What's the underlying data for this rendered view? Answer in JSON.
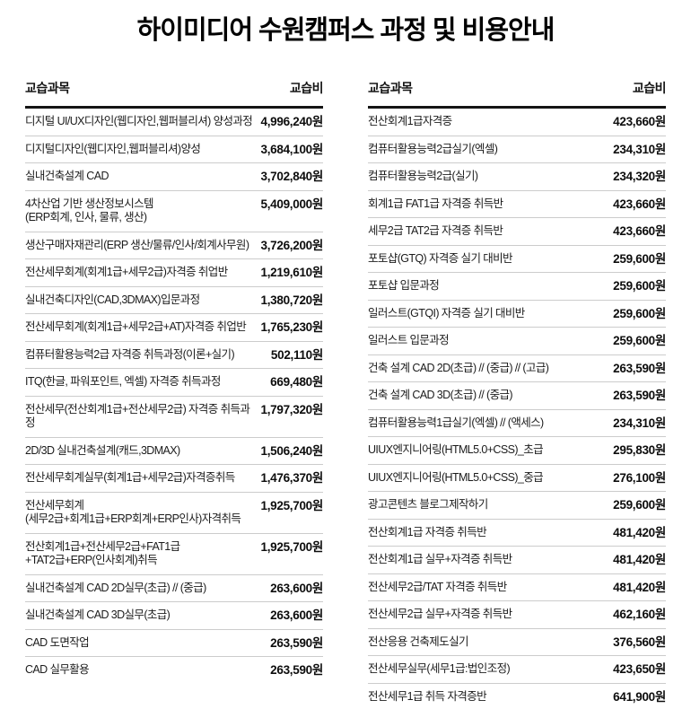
{
  "title": "하이미디어 수원캠퍼스 과정 및 비용안내",
  "headers": {
    "subject": "교습과목",
    "fee": "교습비"
  },
  "left_table": {
    "rows": [
      {
        "subject": "디지털 UI/UX디자인(웹디자인,웹퍼블리셔) 양성과정",
        "fee": "4,996,240원"
      },
      {
        "subject": "디지털디자인(웹디자인,웹퍼블리셔)양성",
        "fee": "3,684,100원"
      },
      {
        "subject": "실내건축설계 CAD",
        "fee": "3,702,840원"
      },
      {
        "subject": "4차산업 기반 생산정보시스템\n(ERP회계, 인사, 물류, 생산)",
        "fee": "5,409,000원"
      },
      {
        "subject": "생산구매자재관리(ERP 생산/물류/인사/회계사무원)",
        "fee": "3,726,200원"
      },
      {
        "subject": "전산세무회계(회계1급+세무2급)자격증 취업반",
        "fee": "1,219,610원"
      },
      {
        "subject": "실내건축디자인(CAD,3DMAX)입문과정",
        "fee": "1,380,720원"
      },
      {
        "subject": "전산세무회계(회계1급+세무2급+AT)자격증 취업반",
        "fee": "1,765,230원"
      },
      {
        "subject": "컴퓨터활용능력2급 자격증 취득과정(이론+실기)",
        "fee": "502,110원"
      },
      {
        "subject": "ITQ(한글, 파워포인트, 엑셀) 자격증 취득과정",
        "fee": "669,480원"
      },
      {
        "subject": "전산세무(전산회계1급+전산세무2급) 자격증 취득과정",
        "fee": "1,797,320원"
      },
      {
        "subject": "2D/3D 실내건축설계(캐드,3DMAX)",
        "fee": "1,506,240원"
      },
      {
        "subject": "전산세무회계실무(회계1급+세무2급)자격증취득",
        "fee": "1,476,370원"
      },
      {
        "subject": "전산세무회계\n(세무2급+회계1급+ERP회계+ERP인사)자격취득",
        "fee": "1,925,700원"
      },
      {
        "subject": "전산회계1급+전산세무2급+FAT1급\n+TAT2급+ERP(인사회계)취득",
        "fee": "1,925,700원"
      },
      {
        "subject": "실내건축설계 CAD 2D실무(초급) // (중급)",
        "fee": "263,600원"
      },
      {
        "subject": "실내건축설계 CAD 3D실무(초급)",
        "fee": "263,600원"
      },
      {
        "subject": "CAD 도면작업",
        "fee": "263,590원"
      },
      {
        "subject": "CAD 실무활용",
        "fee": "263,590원"
      }
    ]
  },
  "right_table": {
    "rows": [
      {
        "subject": "전산회계1급자격증",
        "fee": "423,660원"
      },
      {
        "subject": "컴퓨터활용능력2급실기(엑셀)",
        "fee": "234,310원"
      },
      {
        "subject": "컴퓨터활용능력2급(실기)",
        "fee": "234,320원"
      },
      {
        "subject": "회계1급  FAT1급 자격증 취득반",
        "fee": "423,660원"
      },
      {
        "subject": "세무2급 TAT2급 자격증 취득반",
        "fee": "423,660원"
      },
      {
        "subject": "포토샵(GTQ) 자격증 실기 대비반",
        "fee": "259,600원"
      },
      {
        "subject": "포토샵 입문과정",
        "fee": "259,600원"
      },
      {
        "subject": "일러스트(GTQI) 자격증 실기 대비반",
        "fee": "259,600원"
      },
      {
        "subject": "일러스트 입문과정",
        "fee": "259,600원"
      },
      {
        "subject": "건축 설계 CAD 2D(초급) // (중급) // (고급)",
        "fee": "263,590원"
      },
      {
        "subject": "건축 설계 CAD 3D(초급) // (중급)",
        "fee": "263,590원"
      },
      {
        "subject": "컴퓨터활용능력1급실기(엑셀) // (액세스)",
        "fee": "234,310원"
      },
      {
        "subject": "UIUX엔지니어링(HTML5.0+CSS)_초급",
        "fee": "295,830원"
      },
      {
        "subject": "UIUX엔지니어링(HTML5.0+CSS)_중급",
        "fee": "276,100원"
      },
      {
        "subject": "광고콘텐츠 블로그제작하기",
        "fee": "259,600원"
      },
      {
        "subject": "전산회계1급 자격증 취득반",
        "fee": "481,420원"
      },
      {
        "subject": "전산회계1급 실무+자격증 취득반",
        "fee": "481,420원"
      },
      {
        "subject": "전산세무2급/TAT 자격증 취득반",
        "fee": "481,420원"
      },
      {
        "subject": "전산세무2급 실무+자격증 취득반",
        "fee": "462,160원"
      },
      {
        "subject": "전산응용 건축제도실기",
        "fee": "376,560원"
      },
      {
        "subject": "전산세무실무(세무1급:법인조정)",
        "fee": "423,650원"
      },
      {
        "subject": "전산세무1급 취득 자격증반",
        "fee": "641,900원"
      }
    ]
  }
}
